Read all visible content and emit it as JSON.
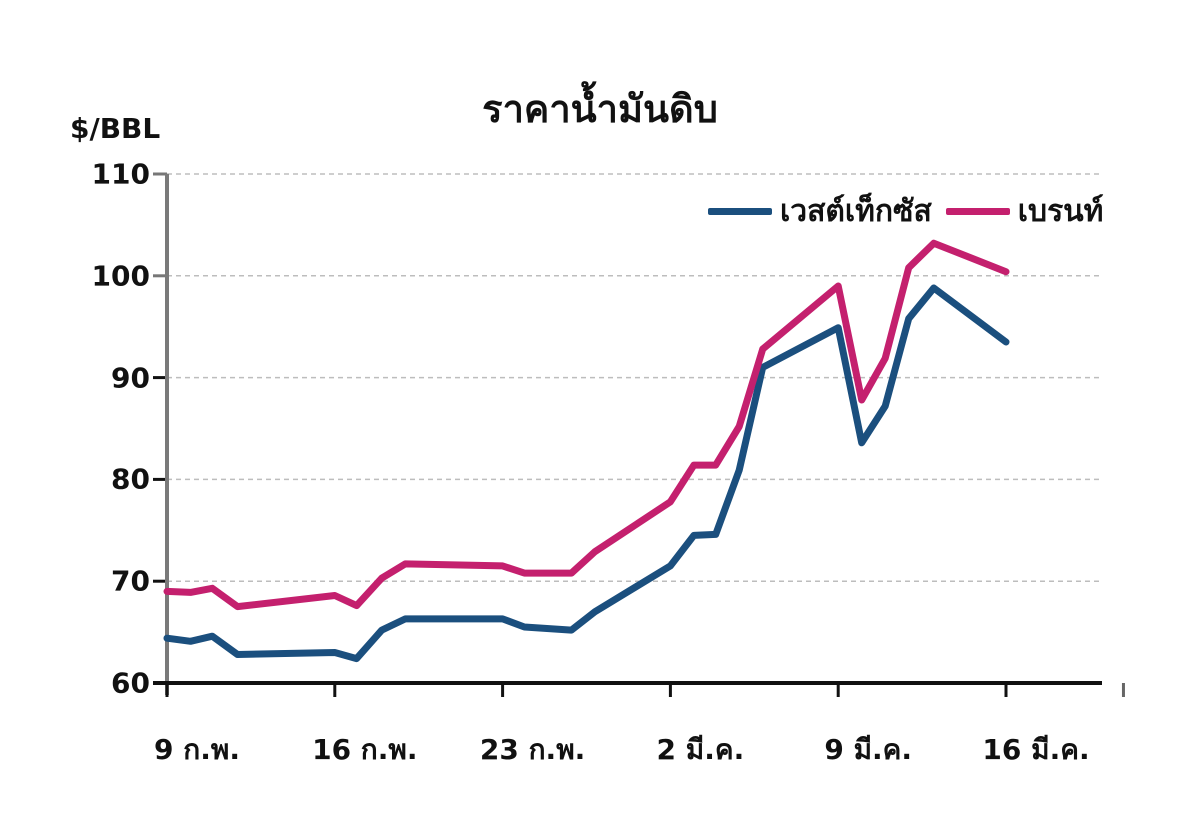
{
  "chart_data": {
    "type": "line",
    "title": "ราคาน้ำมันดิบ",
    "ylabel": "$/BBL",
    "xlabel": "",
    "ylim": [
      60,
      110
    ],
    "yticks": [
      60,
      70,
      80,
      90,
      100,
      110
    ],
    "xtick_labels": [
      "9 ก.พ.",
      "16 ก.พ.",
      "23 ก.พ.",
      "2 มี.ค.",
      "9 มี.ค.",
      "16 มี.ค."
    ],
    "grid": "horizontal dashed",
    "legend_position": "top-right",
    "x_index": [
      0,
      0.7,
      1.35,
      2.1,
      5,
      5.65,
      6.4,
      7.1,
      10,
      10.65,
      12.05,
      12.75,
      15,
      15.7,
      16.35,
      17.05,
      17.75,
      20,
      20.7,
      21.4,
      22.1,
      22.85,
      25
    ],
    "series": [
      {
        "name": "เวสต์เท็กซัส",
        "color": "#1b4f7e",
        "values": [
          64.4,
          64.1,
          64.6,
          62.8,
          63.0,
          62.4,
          65.2,
          66.3,
          66.3,
          65.5,
          65.2,
          67.0,
          71.5,
          74.5,
          74.6,
          80.9,
          91.0,
          94.9,
          83.6,
          87.2,
          95.8,
          98.8,
          93.5
        ]
      },
      {
        "name": "เบรนท์",
        "color": "#c4206e",
        "values": [
          69.0,
          68.9,
          69.3,
          67.5,
          68.6,
          67.6,
          70.3,
          71.7,
          71.5,
          70.8,
          70.8,
          72.9,
          77.8,
          81.4,
          81.4,
          85.2,
          92.8,
          99.0,
          87.8,
          91.9,
          100.8,
          103.2,
          100.4
        ]
      }
    ]
  }
}
